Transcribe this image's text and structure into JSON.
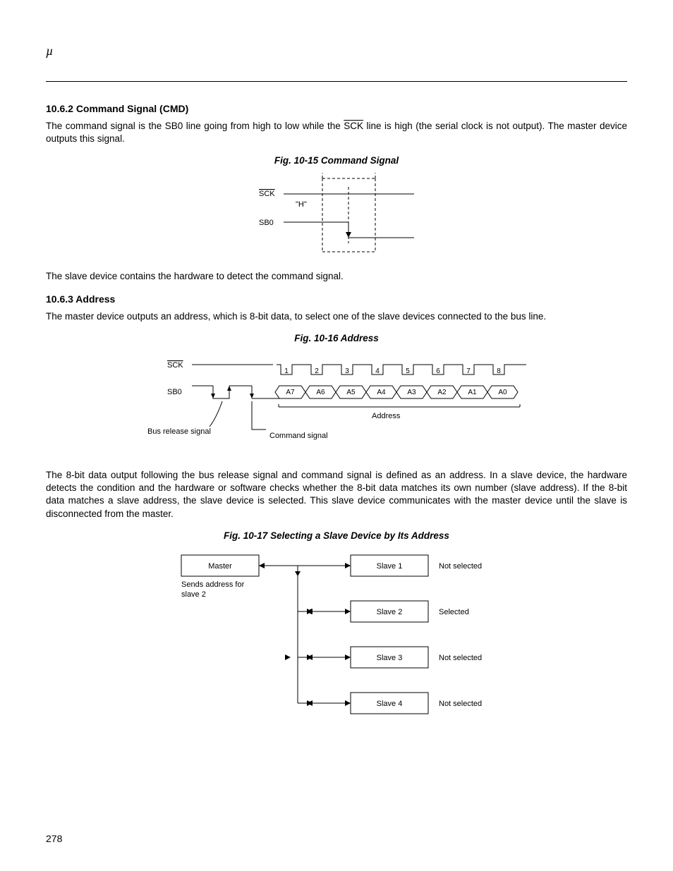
{
  "header": {
    "mu": "µ"
  },
  "page_number": "278",
  "sections": {
    "s1": {
      "heading": "10.6.2  Command Signal (CMD)",
      "p1a": "The command signal is the SB0 line going from high to low while the ",
      "p1b": " line is high (the serial clock is not output). The master device outputs this signal.",
      "p2": "The slave device contains the hardware to detect the command signal."
    },
    "s2": {
      "heading": "10.6.3  Address",
      "p1": "The master device outputs an address, which is 8-bit data, to select one of the slave devices connected to the bus line.",
      "p2": "The 8-bit data output following the bus release signal and command signal is defined as an address.  In a slave device, the hardware detects the condition and the hardware or software checks whether the 8-bit data matches its own number (slave address).  If the 8-bit data matches a slave address, the slave device is selected.  This slave device communicates with the master device until the slave is disconnected from the master."
    }
  },
  "fig15": {
    "caption": "Fig. 10-15  Command Signal",
    "sck_label": "SCK",
    "sb0_label": "SB0",
    "h_label": "\"H\""
  },
  "fig16": {
    "caption": "Fig. 10-16  Address",
    "sck_label": "SCK",
    "sb0_label": "SB0",
    "bus_rel": "Bus release signal",
    "cmd_sig": "Command signal",
    "addr_label": "Address",
    "ticks": [
      "1",
      "2",
      "3",
      "4",
      "5",
      "6",
      "7",
      "8"
    ],
    "bits": [
      "A7",
      "A6",
      "A5",
      "A4",
      "A3",
      "A2",
      "A1",
      "A0"
    ]
  },
  "fig17": {
    "caption": "Fig. 10-17  Selecting a Slave Device by Its Address",
    "master": "Master",
    "sends": "Sends address for slave 2",
    "slaves": [
      "Slave 1",
      "Slave 2",
      "Slave 3",
      "Slave 4"
    ],
    "status": [
      "Not selected",
      "Selected",
      "Not selected",
      "Not selected"
    ]
  },
  "style": {
    "text_color": "#000000",
    "bg_color": "#ffffff",
    "line_color": "#000000",
    "dash": "4,3",
    "font_small": 11,
    "font_tiny": 10
  }
}
